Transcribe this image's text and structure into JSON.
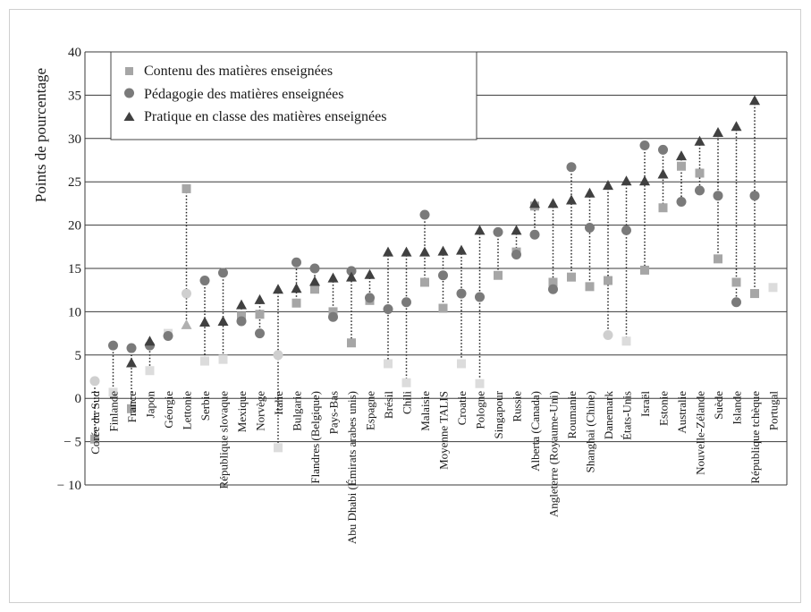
{
  "chart_data": {
    "type": "scatter",
    "title": "",
    "xlabel": "",
    "ylabel": "Points de pourcentage",
    "ylim": [
      -10,
      40
    ],
    "yticks": [
      -10,
      -5,
      0,
      5,
      10,
      15,
      20,
      25,
      30,
      35,
      40
    ],
    "ytick_labels": [
      "− 10",
      "− 5",
      "0",
      "5",
      "10",
      "15",
      "20",
      "25",
      "30",
      "35",
      "40"
    ],
    "grid": true,
    "legend_position": "top-left",
    "categories": [
      "Corée du Sud",
      "Finlande",
      "France",
      "Japon",
      "Géorgie",
      "Lettonie",
      "Serbie",
      "République slovaque",
      "Mexique",
      "Norvège",
      "Italie",
      "Bulgarie",
      "Flandres (Belgique)",
      "Pays-Bas",
      "Abu Dhabi (Émirats arabes unis)",
      "Espagne",
      "Brésil",
      "Chili",
      "Malaisie",
      "Moyenne TALIS",
      "Croatie",
      "Pologne",
      "Singapour",
      "Russie",
      "Alberta (Canada)",
      "Angleterre (Royaume-Uni)",
      "Roumanie",
      "Shanghai (Chine)",
      "Danemark",
      "États-Unis",
      "Israël",
      "Estonie",
      "Australie",
      "Nouvelle-Zélande",
      "Suède",
      "Islande",
      "République tchèque",
      "Portugal"
    ],
    "series": [
      {
        "name": "Contenu des matières enseignées",
        "marker": "square",
        "color": "#a6a6a6",
        "values": [
          -4.7,
          0.7,
          -1.2,
          3.2,
          7.5,
          24.2,
          4.3,
          4.5,
          9.5,
          9.7,
          -5.7,
          11.0,
          12.6,
          10.0,
          6.4,
          11.3,
          4.0,
          1.8,
          13.4,
          10.4,
          4.0,
          1.7,
          14.2,
          16.9,
          22.2,
          13.4,
          14.0,
          12.9,
          13.6,
          6.6,
          14.8,
          22.0,
          26.8,
          26.0,
          16.1,
          13.4,
          12.1,
          12.8
        ],
        "significant": [
          true,
          false,
          true,
          false,
          false,
          true,
          false,
          false,
          true,
          true,
          false,
          true,
          true,
          true,
          true,
          true,
          false,
          false,
          true,
          true,
          false,
          false,
          true,
          true,
          true,
          true,
          true,
          true,
          true,
          false,
          true,
          true,
          true,
          true,
          true,
          true,
          true,
          false
        ]
      },
      {
        "name": "Pédagogie des matières enseignées",
        "marker": "circle",
        "color": "#7a7a7a",
        "values": [
          2.0,
          6.1,
          5.8,
          6.1,
          7.2,
          12.1,
          13.6,
          14.5,
          8.9,
          7.5,
          5.0,
          15.7,
          15.0,
          9.4,
          14.7,
          11.6,
          10.3,
          11.1,
          21.2,
          14.2,
          12.1,
          11.7,
          19.2,
          16.6,
          18.9,
          12.6,
          26.7,
          19.7,
          7.3,
          19.4,
          29.2,
          28.7,
          22.7,
          24.0,
          23.4,
          11.1,
          23.4,
          null
        ],
        "significant": [
          false,
          true,
          true,
          true,
          true,
          false,
          true,
          true,
          true,
          true,
          false,
          true,
          true,
          true,
          true,
          true,
          true,
          true,
          true,
          true,
          true,
          true,
          true,
          true,
          true,
          true,
          true,
          true,
          false,
          true,
          true,
          true,
          true,
          true,
          true,
          true,
          true,
          false
        ]
      },
      {
        "name": "Pratique en classe des matières enseignées",
        "marker": "triangle",
        "color": "#404040",
        "values": [
          null,
          null,
          4.1,
          6.6,
          null,
          8.5,
          8.8,
          8.9,
          10.8,
          11.4,
          12.6,
          12.7,
          13.5,
          13.9,
          14.0,
          14.3,
          16.9,
          16.9,
          16.9,
          17.0,
          17.1,
          19.4,
          null,
          19.4,
          22.5,
          22.5,
          22.9,
          23.7,
          24.6,
          25.1,
          25.1,
          25.9,
          28.0,
          29.7,
          30.7,
          31.4,
          34.4,
          null
        ],
        "significant": [
          false,
          false,
          true,
          true,
          false,
          false,
          true,
          true,
          true,
          true,
          true,
          true,
          true,
          true,
          true,
          true,
          true,
          true,
          true,
          true,
          true,
          true,
          false,
          true,
          true,
          true,
          true,
          true,
          true,
          true,
          true,
          true,
          true,
          true,
          true,
          true,
          true,
          false
        ]
      }
    ]
  }
}
